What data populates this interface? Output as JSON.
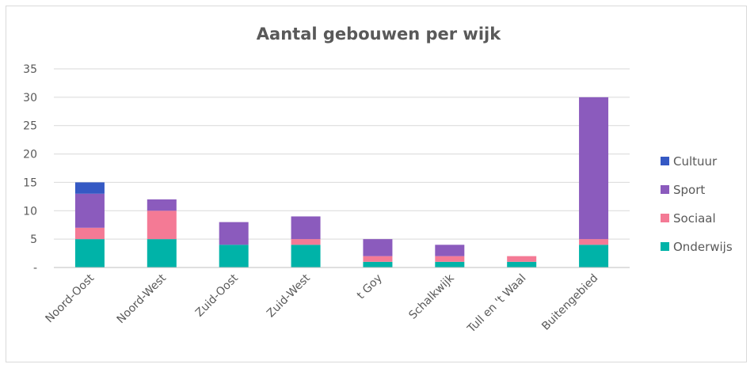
{
  "chart_data": {
    "type": "bar",
    "stacked": true,
    "title": "Aantal gebouwen per wijk",
    "xlabel": "",
    "ylabel": "",
    "categories": [
      "Noord-Oost",
      "Noord-West",
      "Zuid-Oost",
      "Zuid-West",
      "t Goy",
      "Schalkwijk",
      "Tull en 't Waal",
      "Buitengebied"
    ],
    "series": [
      {
        "name": "Onderwijs",
        "color": "#00b3a8",
        "values": [
          5,
          5,
          4,
          4,
          1,
          1,
          1,
          4
        ]
      },
      {
        "name": "Sociaal",
        "color": "#f47a95",
        "values": [
          2,
          5,
          0,
          1,
          1,
          1,
          1,
          1
        ]
      },
      {
        "name": "Sport",
        "color": "#8b5bbd",
        "values": [
          6,
          2,
          4,
          4,
          3,
          2,
          0,
          25
        ]
      },
      {
        "name": "Cultuur",
        "color": "#3559c4",
        "values": [
          2,
          0,
          0,
          0,
          0,
          0,
          0,
          0
        ]
      }
    ],
    "ylim": [
      0,
      35
    ],
    "yticks": [
      "-",
      "5",
      "10",
      "15",
      "20",
      "25",
      "30",
      "35"
    ],
    "grid": true,
    "legend_position": "right"
  }
}
